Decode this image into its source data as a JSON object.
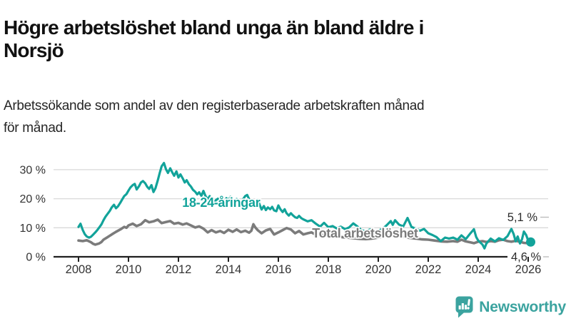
{
  "header": {
    "title": "Högre arbetslöshet bland unga än bland äldre i Norsjö",
    "title_lines": [
      "Högre arbetslöshet bland unga än bland äldre i",
      "Norsjö"
    ],
    "subtitle": "Arbetssökande som andel av den registerbaserade arbetskraften månad för månad.",
    "subtitle_lines": [
      "Arbetssökande som andel av den registerbaserade arbetskraften månad",
      "för månad."
    ]
  },
  "branding": {
    "logo_text": "Newsworthy",
    "logo_icon": "bar-chart-speech-bubble-icon",
    "brand_color": "#3ba39f"
  },
  "colors": {
    "young_line": "#12a39a",
    "total_line": "#7b7b7b",
    "axis": "#1f1f1f",
    "grid": "#d9d9d9",
    "tick_text": "#333333",
    "value_text": "#2b2b2b",
    "background": "#ffffff"
  },
  "chart_data": {
    "type": "line",
    "title": "Högre arbetslöshet bland unga än bland äldre i Norsjö",
    "subtitle": "Arbetssökande som andel av den registerbaserade arbetskraften månad för månad.",
    "xlabel": "",
    "ylabel": "",
    "x_range": [
      2007.0,
      2026.9
    ],
    "y_range": [
      0,
      33.5
    ],
    "grid": true,
    "legend_position": "inline-labels",
    "x_ticks": [
      {
        "value": 2008,
        "label": "2008"
      },
      {
        "value": 2010,
        "label": "2010"
      },
      {
        "value": 2012,
        "label": "2012"
      },
      {
        "value": 2014,
        "label": "2014"
      },
      {
        "value": 2016,
        "label": "2016"
      },
      {
        "value": 2018,
        "label": "2018"
      },
      {
        "value": 2020,
        "label": "2020"
      },
      {
        "value": 2022,
        "label": "2022"
      },
      {
        "value": 2024,
        "label": "2024"
      },
      {
        "value": 2026,
        "label": "2026"
      }
    ],
    "y_ticks": [
      {
        "value": 0,
        "label": "0 %"
      },
      {
        "value": 10,
        "label": "10 %"
      },
      {
        "value": 20,
        "label": "20 %"
      },
      {
        "value": 30,
        "label": "30 %"
      }
    ],
    "series": [
      {
        "name": "Total arbetslöshet",
        "color": "#7b7b7b",
        "end_label": "4,6 %",
        "end_value": 4.6,
        "label_anchor": {
          "x": 2017.35,
          "y": 6.6
        },
        "points": [
          [
            2008.0,
            5.6
          ],
          [
            2008.17,
            5.4
          ],
          [
            2008.33,
            5.7
          ],
          [
            2008.5,
            5.0
          ],
          [
            2008.58,
            4.5
          ],
          [
            2008.67,
            4.2
          ],
          [
            2008.83,
            4.6
          ],
          [
            2008.92,
            5.1
          ],
          [
            2009.0,
            5.9
          ],
          [
            2009.17,
            6.8
          ],
          [
            2009.33,
            7.7
          ],
          [
            2009.5,
            8.6
          ],
          [
            2009.67,
            9.4
          ],
          [
            2009.83,
            10.3
          ],
          [
            2009.92,
            10.0
          ],
          [
            2010.0,
            10.8
          ],
          [
            2010.17,
            11.4
          ],
          [
            2010.33,
            10.6
          ],
          [
            2010.5,
            11.2
          ],
          [
            2010.67,
            12.6
          ],
          [
            2010.83,
            11.9
          ],
          [
            2011.0,
            12.2
          ],
          [
            2011.17,
            12.8
          ],
          [
            2011.33,
            11.6
          ],
          [
            2011.5,
            12.0
          ],
          [
            2011.67,
            12.3
          ],
          [
            2011.83,
            11.4
          ],
          [
            2012.0,
            11.7
          ],
          [
            2012.17,
            11.1
          ],
          [
            2012.33,
            11.5
          ],
          [
            2012.5,
            10.8
          ],
          [
            2012.67,
            10.1
          ],
          [
            2012.83,
            10.5
          ],
          [
            2013.0,
            9.7
          ],
          [
            2013.17,
            8.4
          ],
          [
            2013.33,
            9.2
          ],
          [
            2013.5,
            8.4
          ],
          [
            2013.67,
            8.9
          ],
          [
            2013.83,
            8.2
          ],
          [
            2014.0,
            9.3
          ],
          [
            2014.17,
            8.6
          ],
          [
            2014.33,
            9.4
          ],
          [
            2014.5,
            8.5
          ],
          [
            2014.67,
            9.0
          ],
          [
            2014.83,
            8.3
          ],
          [
            2014.92,
            9.0
          ],
          [
            2015.0,
            11.2
          ],
          [
            2015.08,
            10.1
          ],
          [
            2015.17,
            9.2
          ],
          [
            2015.33,
            8.1
          ],
          [
            2015.5,
            9.1
          ],
          [
            2015.67,
            9.6
          ],
          [
            2015.83,
            7.7
          ],
          [
            2016.0,
            8.4
          ],
          [
            2016.17,
            9.2
          ],
          [
            2016.33,
            9.9
          ],
          [
            2016.5,
            9.4
          ],
          [
            2016.67,
            8.1
          ],
          [
            2016.83,
            8.9
          ],
          [
            2017.0,
            7.7
          ],
          [
            2017.17,
            8.1
          ],
          [
            2017.33,
            8.4
          ],
          [
            2017.5,
            7.6
          ],
          [
            2017.67,
            8.0
          ],
          [
            2017.83,
            7.1
          ],
          [
            2018.0,
            7.3
          ],
          [
            2018.25,
            7.0
          ],
          [
            2018.5,
            6.8
          ],
          [
            2018.75,
            6.6
          ],
          [
            2019.0,
            6.4
          ],
          [
            2019.25,
            6.2
          ],
          [
            2019.5,
            6.1
          ],
          [
            2019.75,
            6.3
          ],
          [
            2020.0,
            6.6
          ],
          [
            2020.25,
            7.1
          ],
          [
            2020.5,
            7.3
          ],
          [
            2020.75,
            7.0
          ],
          [
            2021.0,
            6.8
          ],
          [
            2021.25,
            6.5
          ],
          [
            2021.5,
            6.3
          ],
          [
            2021.75,
            6.0
          ],
          [
            2022.0,
            5.9
          ],
          [
            2022.25,
            5.6
          ],
          [
            2022.5,
            5.3
          ],
          [
            2022.75,
            5.2
          ],
          [
            2023.0,
            5.4
          ],
          [
            2023.17,
            5.2
          ],
          [
            2023.33,
            5.9
          ],
          [
            2023.5,
            5.3
          ],
          [
            2023.67,
            5.0
          ],
          [
            2023.83,
            4.7
          ],
          [
            2024.0,
            5.2
          ],
          [
            2024.17,
            5.4
          ],
          [
            2024.33,
            5.1
          ],
          [
            2024.5,
            5.4
          ],
          [
            2024.67,
            5.2
          ],
          [
            2024.83,
            5.7
          ],
          [
            2025.0,
            5.9
          ],
          [
            2025.17,
            5.4
          ],
          [
            2025.33,
            5.2
          ],
          [
            2025.5,
            5.5
          ],
          [
            2025.67,
            5.2
          ],
          [
            2025.83,
            4.8
          ],
          [
            2026.0,
            4.7
          ],
          [
            2026.1,
            4.6
          ]
        ]
      },
      {
        "name": "18-24-åringar",
        "color": "#12a39a",
        "end_label": "5,1 %",
        "end_value": 5.1,
        "end_dot": true,
        "label_anchor": {
          "x": 2012.15,
          "y": 17.2
        },
        "points": [
          [
            2008.0,
            10.3
          ],
          [
            2008.08,
            11.4
          ],
          [
            2008.17,
            9.2
          ],
          [
            2008.25,
            7.8
          ],
          [
            2008.33,
            7.0
          ],
          [
            2008.42,
            6.6
          ],
          [
            2008.5,
            6.9
          ],
          [
            2008.58,
            7.6
          ],
          [
            2008.67,
            8.4
          ],
          [
            2008.75,
            9.2
          ],
          [
            2008.83,
            10.1
          ],
          [
            2008.92,
            11.2
          ],
          [
            2009.0,
            12.6
          ],
          [
            2009.08,
            13.8
          ],
          [
            2009.17,
            14.9
          ],
          [
            2009.25,
            15.8
          ],
          [
            2009.33,
            17.0
          ],
          [
            2009.42,
            17.9
          ],
          [
            2009.5,
            16.7
          ],
          [
            2009.58,
            17.4
          ],
          [
            2009.67,
            18.6
          ],
          [
            2009.75,
            19.8
          ],
          [
            2009.83,
            20.9
          ],
          [
            2009.92,
            21.6
          ],
          [
            2010.0,
            22.8
          ],
          [
            2010.08,
            23.9
          ],
          [
            2010.17,
            24.7
          ],
          [
            2010.25,
            25.1
          ],
          [
            2010.33,
            23.2
          ],
          [
            2010.42,
            24.3
          ],
          [
            2010.5,
            25.6
          ],
          [
            2010.58,
            26.1
          ],
          [
            2010.67,
            25.3
          ],
          [
            2010.75,
            24.1
          ],
          [
            2010.83,
            23.4
          ],
          [
            2010.92,
            24.7
          ],
          [
            2011.0,
            22.3
          ],
          [
            2011.08,
            23.6
          ],
          [
            2011.17,
            26.3
          ],
          [
            2011.25,
            28.9
          ],
          [
            2011.33,
            31.2
          ],
          [
            2011.42,
            32.3
          ],
          [
            2011.5,
            30.2
          ],
          [
            2011.58,
            28.9
          ],
          [
            2011.67,
            30.5
          ],
          [
            2011.75,
            29.1
          ],
          [
            2011.83,
            27.9
          ],
          [
            2011.92,
            29.4
          ],
          [
            2012.0,
            27.3
          ],
          [
            2012.08,
            28.4
          ],
          [
            2012.17,
            27.0
          ],
          [
            2012.25,
            25.6
          ],
          [
            2012.33,
            26.4
          ],
          [
            2012.42,
            25.0
          ],
          [
            2012.5,
            24.2
          ],
          [
            2012.58,
            23.1
          ],
          [
            2012.67,
            22.4
          ],
          [
            2012.75,
            21.5
          ],
          [
            2012.83,
            22.2
          ],
          [
            2012.92,
            21.0
          ],
          [
            2013.0,
            22.7
          ],
          [
            2013.08,
            21.0
          ],
          [
            2013.17,
            19.7
          ],
          [
            2013.25,
            20.9
          ],
          [
            2013.33,
            19.2
          ],
          [
            2013.42,
            18.3
          ],
          [
            2013.5,
            19.5
          ],
          [
            2013.58,
            20.0
          ],
          [
            2013.67,
            18.7
          ],
          [
            2013.75,
            19.3
          ],
          [
            2013.83,
            18.5
          ],
          [
            2013.92,
            20.2
          ],
          [
            2014.0,
            19.2
          ],
          [
            2014.08,
            20.7
          ],
          [
            2014.17,
            19.8
          ],
          [
            2014.25,
            18.9
          ],
          [
            2014.33,
            19.9
          ],
          [
            2014.42,
            19.0
          ],
          [
            2014.5,
            18.4
          ],
          [
            2014.58,
            19.7
          ],
          [
            2014.67,
            20.9
          ],
          [
            2014.75,
            21.3
          ],
          [
            2014.83,
            19.9
          ],
          [
            2014.92,
            18.0
          ],
          [
            2015.0,
            17.4
          ],
          [
            2015.08,
            18.6
          ],
          [
            2015.17,
            19.7
          ],
          [
            2015.25,
            17.9
          ],
          [
            2015.33,
            16.3
          ],
          [
            2015.42,
            17.5
          ],
          [
            2015.5,
            16.1
          ],
          [
            2015.58,
            17.0
          ],
          [
            2015.67,
            16.4
          ],
          [
            2015.75,
            17.2
          ],
          [
            2015.83,
            16.0
          ],
          [
            2015.92,
            15.7
          ],
          [
            2016.0,
            17.7
          ],
          [
            2016.08,
            16.4
          ],
          [
            2016.17,
            15.4
          ],
          [
            2016.25,
            16.4
          ],
          [
            2016.33,
            15.0
          ],
          [
            2016.42,
            14.2
          ],
          [
            2016.5,
            15.0
          ],
          [
            2016.58,
            14.3
          ],
          [
            2016.67,
            13.6
          ],
          [
            2016.75,
            13.4
          ],
          [
            2016.83,
            14.1
          ],
          [
            2016.92,
            13.3
          ],
          [
            2017.0,
            12.9
          ],
          [
            2017.17,
            12.2
          ],
          [
            2017.33,
            12.6
          ],
          [
            2017.5,
            11.4
          ],
          [
            2017.67,
            10.4
          ],
          [
            2017.83,
            11.7
          ],
          [
            2018.0,
            10.2
          ],
          [
            2018.17,
            10.6
          ],
          [
            2018.33,
            9.8
          ],
          [
            2018.5,
            10.4
          ],
          [
            2018.67,
            9.5
          ],
          [
            2018.83,
            10.1
          ],
          [
            2019.0,
            11.5
          ],
          [
            2019.17,
            10.4
          ],
          [
            2019.33,
            9.1
          ],
          [
            2019.5,
            8.9
          ],
          [
            2019.67,
            9.4
          ],
          [
            2019.83,
            8.7
          ],
          [
            2020.0,
            9.0
          ],
          [
            2020.17,
            9.6
          ],
          [
            2020.33,
            10.8
          ],
          [
            2020.5,
            12.3
          ],
          [
            2020.58,
            11.0
          ],
          [
            2020.67,
            12.6
          ],
          [
            2020.83,
            11.1
          ],
          [
            2021.0,
            10.5
          ],
          [
            2021.17,
            13.4
          ],
          [
            2021.33,
            10.3
          ],
          [
            2021.5,
            9.7
          ],
          [
            2021.67,
            9.0
          ],
          [
            2021.83,
            9.6
          ],
          [
            2022.0,
            8.1
          ],
          [
            2022.17,
            7.5
          ],
          [
            2022.33,
            6.8
          ],
          [
            2022.5,
            5.4
          ],
          [
            2022.67,
            6.6
          ],
          [
            2022.83,
            6.3
          ],
          [
            2023.0,
            6.6
          ],
          [
            2023.17,
            5.9
          ],
          [
            2023.33,
            7.4
          ],
          [
            2023.5,
            6.1
          ],
          [
            2023.67,
            7.9
          ],
          [
            2023.83,
            9.5
          ],
          [
            2023.92,
            6.8
          ],
          [
            2024.0,
            5.6
          ],
          [
            2024.17,
            4.2
          ],
          [
            2024.25,
            2.9
          ],
          [
            2024.33,
            4.6
          ],
          [
            2024.5,
            6.3
          ],
          [
            2024.67,
            5.3
          ],
          [
            2024.83,
            6.4
          ],
          [
            2025.0,
            5.8
          ],
          [
            2025.17,
            7.1
          ],
          [
            2025.33,
            9.6
          ],
          [
            2025.42,
            7.8
          ],
          [
            2025.5,
            5.3
          ],
          [
            2025.58,
            7.0
          ],
          [
            2025.67,
            4.6
          ],
          [
            2025.75,
            6.0
          ],
          [
            2025.83,
            8.7
          ],
          [
            2025.92,
            7.5
          ],
          [
            2026.0,
            5.6
          ],
          [
            2026.1,
            5.1
          ]
        ]
      }
    ]
  }
}
